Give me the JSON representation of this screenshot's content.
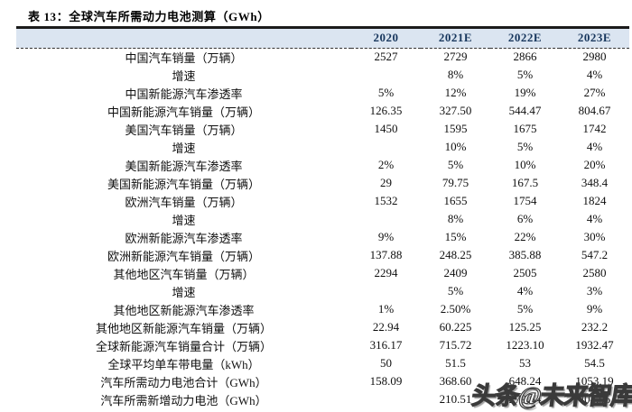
{
  "title": "表 13：全球汽车所需动力电池测算（GWh）",
  "watermark": "头条@未来智库",
  "colors": {
    "header_bg": "#dbe5f1",
    "header_text": "#17365d",
    "body_text": "#0f0f0f",
    "rule": "#1b1b1b"
  },
  "table": {
    "columns": [
      "",
      "2020",
      "2021E",
      "2022E",
      "2023E"
    ],
    "rows": [
      {
        "label": "中国汽车销量（万辆）",
        "values": [
          "2527",
          "2729",
          "2866",
          "2980"
        ]
      },
      {
        "label": "增速",
        "values": [
          "",
          "8%",
          "5%",
          "4%"
        ]
      },
      {
        "label": "中国新能源汽车渗透率",
        "values": [
          "5%",
          "12%",
          "19%",
          "27%"
        ]
      },
      {
        "label": "中国新能源汽车销量（万辆）",
        "values": [
          "126.35",
          "327.50",
          "544.47",
          "804.67"
        ]
      },
      {
        "label": "美国汽车销量（万辆）",
        "values": [
          "1450",
          "1595",
          "1675",
          "1742"
        ]
      },
      {
        "label": "增速",
        "values": [
          "",
          "10%",
          "5%",
          "4%"
        ]
      },
      {
        "label": "美国新能源汽车渗透率",
        "values": [
          "2%",
          "5%",
          "10%",
          "20%"
        ]
      },
      {
        "label": "美国新能源汽车销量（万辆）",
        "values": [
          "29",
          "79.75",
          "167.5",
          "348.4"
        ]
      },
      {
        "label": "欧洲汽车销量（万辆）",
        "values": [
          "1532",
          "1655",
          "1754",
          "1824"
        ]
      },
      {
        "label": "增速",
        "values": [
          "",
          "8%",
          "6%",
          "4%"
        ]
      },
      {
        "label": "欧洲新能源汽车渗透率",
        "values": [
          "9%",
          "15%",
          "22%",
          "30%"
        ]
      },
      {
        "label": "欧洲新能源汽车销量（万辆）",
        "values": [
          "137.88",
          "248.25",
          "385.88",
          "547.2"
        ]
      },
      {
        "label": "其他地区汽车销量（万辆）",
        "values": [
          "2294",
          "2409",
          "2505",
          "2580"
        ]
      },
      {
        "label": "增速",
        "values": [
          "",
          "5%",
          "4%",
          "3%"
        ]
      },
      {
        "label": "其他地区新能源汽车渗透率",
        "values": [
          "1%",
          "2.50%",
          "5%",
          "9%"
        ]
      },
      {
        "label": "其他地区新能源汽车销量（万辆）",
        "values": [
          "22.94",
          "60.225",
          "125.25",
          "232.2"
        ]
      },
      {
        "label": "全球新能源汽车销量合计（万辆）",
        "values": [
          "316.17",
          "715.72",
          "1223.10",
          "1932.47"
        ]
      },
      {
        "label": "全球平均单车带电量（kWh）",
        "values": [
          "50",
          "51.5",
          "53",
          "54.5"
        ]
      },
      {
        "label": "汽车所需动力电池合计（GWh）",
        "values": [
          "158.09",
          "368.60",
          "648.24",
          "1053.19"
        ]
      },
      {
        "label": "汽车所需新增动力电池（GWh）",
        "values": [
          "",
          "210.51",
          "279.64",
          "404.95"
        ]
      }
    ]
  }
}
